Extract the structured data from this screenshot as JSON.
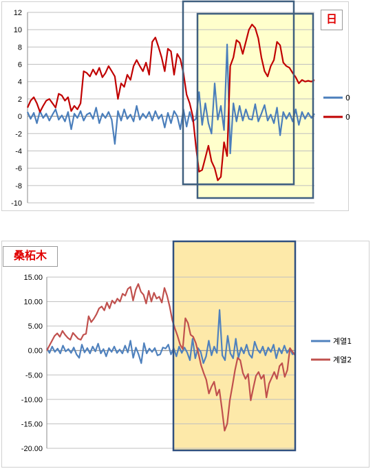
{
  "chart_data": [
    {
      "type": "line",
      "title": "日",
      "ylim": [
        -10,
        12
      ],
      "yticks": [
        "12",
        "10",
        "8",
        "6",
        "4",
        "2",
        "0",
        "-2",
        "-4",
        "-6",
        "-8",
        "-10"
      ],
      "legend_position": "right",
      "grid": true,
      "series": [
        {
          "name": "0",
          "color": "#4a7ebb",
          "values": [
            0.5,
            -0.3,
            0.4,
            -0.8,
            0.6,
            -0.2,
            0.3,
            -0.5,
            0.2,
            0.8,
            -0.4,
            0.1,
            -0.6,
            0.5,
            -1.5,
            0.3,
            -0.2,
            0.6,
            -0.5,
            0.2,
            0.4,
            -0.3,
            1.0,
            -0.8,
            0.3,
            -0.2,
            0.5,
            -0.4,
            -3.2,
            0.6,
            -0.5,
            0.8,
            -0.3,
            0.2,
            -0.6,
            1.2,
            -0.4,
            0.3,
            -0.2,
            0.5,
            -0.5,
            0.6,
            -0.3,
            0.2,
            -1.3,
            0.4,
            -0.8,
            0.6,
            0.0,
            -1.5,
            0.8,
            -1.2,
            0.5,
            -0.6,
            -0.3,
            2.8,
            -1.0,
            1.5,
            -0.8,
            -2.0,
            3.8,
            -0.4,
            1.2,
            -1.6,
            8.3,
            -4.3,
            1.5,
            -0.6,
            1.2,
            -0.5,
            0.8,
            -0.3,
            -0.4,
            1.4,
            -0.6,
            0.3,
            1.3,
            -0.5,
            0.2,
            -0.8,
            1.0,
            -2.2,
            0.5,
            -0.3,
            0.4,
            -0.6,
            0.8,
            -1.0,
            0.5,
            -0.3,
            0.4,
            -0.2,
            0.3
          ]
        },
        {
          "name": "0",
          "color": "#c00000",
          "values": [
            1.0,
            1.8,
            2.2,
            1.5,
            0.5,
            1.2,
            1.8,
            2.0,
            1.5,
            1.0,
            2.6,
            2.4,
            1.8,
            2.2,
            0.6,
            1.2,
            0.8,
            1.5,
            5.2,
            5.0,
            4.6,
            5.4,
            4.8,
            5.6,
            4.5,
            5.0,
            5.8,
            5.2,
            4.6,
            2.0,
            3.8,
            3.4,
            4.8,
            4.2,
            5.8,
            6.5,
            5.8,
            5.2,
            6.2,
            4.8,
            8.6,
            9.1,
            8.0,
            6.8,
            5.2,
            7.8,
            7.5,
            4.8,
            7.2,
            6.6,
            5.0,
            2.5,
            1.5,
            0.0,
            -3.5,
            -6.4,
            -6.2,
            -4.8,
            -3.4,
            -5.2,
            -6.0,
            -7.4,
            -7.0,
            -3.0,
            -4.6,
            5.8,
            6.8,
            8.8,
            8.5,
            7.2,
            8.6,
            10.0,
            10.6,
            10.2,
            9.0,
            6.8,
            5.2,
            4.6,
            5.8,
            6.5,
            8.6,
            8.2,
            6.2,
            5.8,
            5.6,
            5.0,
            4.5,
            3.8,
            4.2,
            4.0,
            4.1,
            4.0,
            4.2
          ]
        }
      ]
    },
    {
      "type": "line",
      "title": "桑柘木",
      "ylim": [
        -20,
        15
      ],
      "yticks": [
        "15.00",
        "10.00",
        "5.00",
        "0.00",
        "-5.00",
        "-10.00",
        "-15.00",
        "-20.00"
      ],
      "legend_position": "right",
      "grid": true,
      "series": [
        {
          "name": "계열1",
          "color": "#4f81bd",
          "values": [
            0.5,
            -0.5,
            0.8,
            -0.3,
            0.4,
            -0.6,
            1.0,
            -0.2,
            0.3,
            -0.5,
            0.6,
            -0.8,
            -1.5,
            1.2,
            -0.4,
            0.5,
            -0.6,
            0.8,
            -0.2,
            1.4,
            -0.6,
            0.3,
            -1.2,
            0.5,
            -0.3,
            0.8,
            -0.5,
            0.2,
            -0.6,
            1.0,
            -0.4,
            2.0,
            -1.5,
            0.6,
            -0.8,
            -2.6,
            1.5,
            -0.6,
            0.4,
            -0.3,
            0.5,
            -1.0,
            -0.8,
            0.6,
            0.4,
            1.2,
            -0.8,
            0.5,
            -1.2,
            0.8,
            -0.5,
            0.6,
            -0.4,
            -2.0,
            2.4,
            -1.6,
            0.5,
            -0.3,
            -2.6,
            -1.2,
            2.0,
            -1.0,
            0.8,
            -0.5,
            8.3,
            -1.0,
            -2.0,
            3.0,
            -0.6,
            -1.6,
            2.4,
            -1.5,
            0.6,
            -0.6,
            1.2,
            -0.8,
            -1.5,
            1.8,
            0.2,
            -0.5,
            0.8,
            -1.0,
            0.6,
            -0.3,
            1.2,
            -1.6,
            0.5,
            -0.6,
            1.0,
            -0.5,
            0.4,
            -0.8,
            -0.4
          ]
        },
        {
          "name": "계열2",
          "color": "#c0504d",
          "values": [
            0.0,
            1.0,
            2.0,
            3.0,
            3.5,
            2.8,
            4.0,
            3.2,
            2.6,
            2.2,
            3.6,
            3.0,
            2.4,
            2.2,
            3.2,
            3.4,
            7.0,
            5.8,
            6.5,
            7.4,
            8.6,
            9.0,
            8.2,
            9.8,
            8.6,
            10.2,
            9.6,
            10.6,
            10.0,
            11.6,
            11.2,
            12.6,
            13.0,
            10.2,
            12.4,
            13.6,
            12.0,
            11.4,
            9.6,
            12.2,
            10.0,
            11.8,
            10.6,
            11.0,
            9.8,
            12.8,
            11.2,
            9.0,
            6.2,
            4.5,
            3.0,
            1.2,
            0.3,
            6.6,
            5.6,
            3.2,
            2.8,
            1.5,
            -0.6,
            -3.0,
            -4.6,
            -6.0,
            -8.8,
            -7.4,
            -6.4,
            -9.2,
            -8.0,
            -12.0,
            -16.4,
            -15.0,
            -10.2,
            -7.2,
            -4.0,
            -1.5,
            -2.0,
            -4.6,
            -5.8,
            -4.8,
            -10.2,
            -7.6,
            -5.2,
            -4.4,
            -5.8,
            -5.0,
            -9.6,
            -6.8,
            -5.6,
            -4.4,
            -5.8,
            -3.2,
            -2.6,
            -5.4,
            -4.0,
            0.5,
            -0.3,
            -1.0
          ]
        }
      ]
    }
  ]
}
